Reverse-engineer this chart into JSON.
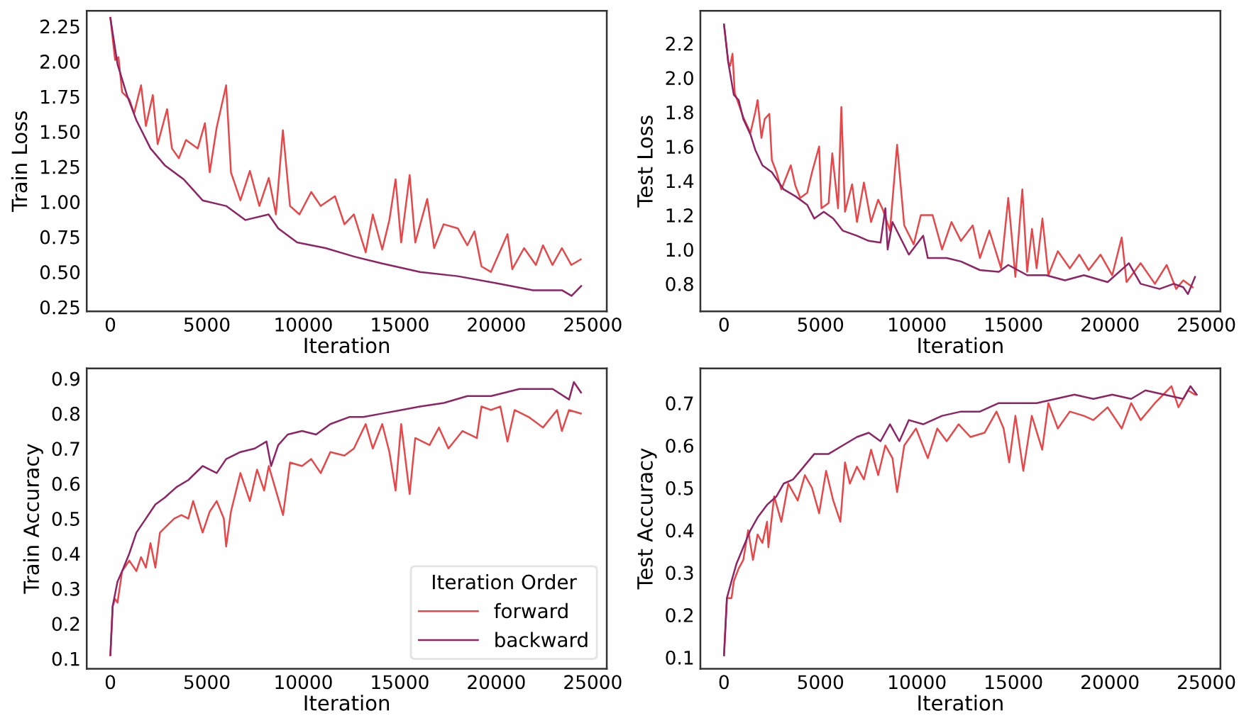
{
  "chart_data": [
    {
      "type": "line",
      "xlabel": "Iteration",
      "ylabel": "Train Loss",
      "grid": false,
      "legend": false,
      "xlim": [
        -1225,
        25725
      ],
      "xticks": [
        0,
        5000,
        10000,
        15000,
        20000,
        25000
      ],
      "ylim": [
        0.22,
        2.36
      ],
      "yticks": [
        {
          "value": 0.25,
          "label": "0.25"
        },
        {
          "value": 0.5,
          "label": "0.50"
        },
        {
          "value": 0.75,
          "label": "0.75"
        },
        {
          "value": 1.0,
          "label": "1.00"
        },
        {
          "value": 1.25,
          "label": "1.25"
        },
        {
          "value": 1.5,
          "label": "1.50"
        },
        {
          "value": 1.75,
          "label": "1.75"
        },
        {
          "value": 2.0,
          "label": "2.00"
        },
        {
          "value": 2.25,
          "label": "2.25"
        }
      ],
      "series": [
        {
          "color": "#e8474a",
          "x": [
            0,
            245,
            420,
            610,
            980,
            1230,
            1590,
            1840,
            2200,
            2450,
            2940,
            3190,
            3550,
            3920,
            4530,
            4900,
            5150,
            5510,
            6000,
            6250,
            6740,
            7230,
            7720,
            8210,
            8580,
            8940,
            9310,
            9800,
            10410,
            10900,
            11640,
            12130,
            12620,
            13230,
            13600,
            14090,
            14460,
            14780,
            15070,
            15510,
            15800,
            16420,
            16780,
            17270,
            18010,
            18500,
            18870,
            19230,
            19720,
            20580,
            20830,
            21440,
            22050,
            22420,
            22910,
            23400,
            23890,
            24380
          ],
          "values": [
            2.31,
            2.01,
            2.03,
            1.78,
            1.73,
            1.63,
            1.83,
            1.54,
            1.76,
            1.41,
            1.66,
            1.38,
            1.31,
            1.44,
            1.38,
            1.56,
            1.21,
            1.53,
            1.83,
            1.21,
            1.01,
            1.22,
            0.97,
            1.17,
            0.91,
            1.51,
            0.97,
            0.91,
            1.07,
            0.97,
            1.04,
            0.84,
            0.91,
            0.64,
            0.91,
            0.66,
            0.87,
            1.16,
            0.71,
            1.19,
            0.71,
            1.02,
            0.67,
            0.84,
            0.81,
            0.69,
            0.79,
            0.54,
            0.5,
            0.77,
            0.52,
            0.67,
            0.55,
            0.69,
            0.55,
            0.67,
            0.55,
            0.59
          ]
        },
        {
          "color": "#8e2464",
          "x": [
            0,
            370,
            860,
            1350,
            2080,
            2820,
            3800,
            4780,
            6000,
            7000,
            8200,
            8700,
            9680,
            11150,
            12620,
            14090,
            16050,
            18000,
            20000,
            21900,
            23400,
            23900,
            24400
          ],
          "values": [
            2.31,
            1.98,
            1.76,
            1.58,
            1.38,
            1.26,
            1.16,
            1.01,
            0.97,
            0.87,
            0.91,
            0.81,
            0.71,
            0.67,
            0.61,
            0.56,
            0.5,
            0.47,
            0.42,
            0.37,
            0.37,
            0.33,
            0.4
          ]
        }
      ]
    },
    {
      "type": "line",
      "xlabel": "Iteration",
      "ylabel": "Test Loss",
      "grid": false,
      "legend": false,
      "xlim": [
        -1225,
        25725
      ],
      "xticks": [
        0,
        5000,
        10000,
        15000,
        20000,
        25000
      ],
      "ylim": [
        0.64,
        2.39
      ],
      "yticks": [
        0.8,
        {
          "value": 1.0,
          "label": "1.0"
        },
        1.2,
        1.4,
        1.6,
        1.8,
        {
          "value": 2.0,
          "label": "2.0"
        },
        2.2
      ],
      "series": [
        {
          "color": "#e8474a",
          "x": [
            0,
            220,
            320,
            440,
            560,
            1000,
            1370,
            1620,
            1740,
            1940,
            2110,
            2350,
            2480,
            2720,
            2970,
            3460,
            3700,
            3950,
            4310,
            4560,
            4930,
            5050,
            5420,
            5610,
            5910,
            6080,
            6270,
            6640,
            6890,
            7250,
            7620,
            7990,
            8240,
            8600,
            8970,
            9340,
            9830,
            10200,
            10810,
            11300,
            11790,
            12280,
            12890,
            13260,
            13750,
            14360,
            14730,
            15100,
            15460,
            15710,
            15960,
            16200,
            16500,
            16810,
            17300,
            17920,
            18410,
            18900,
            19510,
            20120,
            20610,
            20860,
            21590,
            22330,
            22940,
            23430,
            23800,
            24290
          ],
          "values": [
            2.31,
            2.09,
            2.07,
            2.14,
            1.91,
            1.77,
            1.68,
            1.8,
            1.87,
            1.65,
            1.76,
            1.79,
            1.52,
            1.45,
            1.35,
            1.49,
            1.37,
            1.3,
            1.33,
            1.45,
            1.6,
            1.24,
            1.27,
            1.56,
            1.24,
            1.83,
            1.22,
            1.38,
            1.16,
            1.39,
            1.16,
            1.29,
            1.23,
            1.11,
            1.61,
            1.14,
            1.03,
            1.2,
            1.2,
            1.0,
            1.16,
            1.05,
            1.14,
            0.95,
            1.11,
            0.89,
            1.3,
            0.84,
            1.35,
            0.87,
            1.12,
            0.89,
            1.18,
            0.85,
            0.99,
            0.89,
            0.97,
            0.88,
            0.97,
            0.85,
            1.07,
            0.81,
            0.92,
            0.8,
            0.91,
            0.77,
            0.82,
            0.78
          ]
        },
        {
          "color": "#8e2464",
          "x": [
            0,
            220,
            510,
            760,
            1000,
            1370,
            1620,
            1990,
            2480,
            3090,
            3700,
            4310,
            4680,
            5170,
            5660,
            6150,
            6890,
            7500,
            8110,
            8360,
            8480,
            8730,
            9580,
            10320,
            10560,
            11540,
            12280,
            13260,
            14240,
            14730,
            15710,
            16690,
            17670,
            18650,
            19880,
            20980,
            21590,
            22570,
            23310,
            23800,
            24040,
            24410
          ],
          "values": [
            2.31,
            2.09,
            1.9,
            1.87,
            1.76,
            1.67,
            1.58,
            1.49,
            1.45,
            1.35,
            1.31,
            1.26,
            1.18,
            1.22,
            1.18,
            1.11,
            1.08,
            1.05,
            1.04,
            1.24,
            1.0,
            1.16,
            0.97,
            1.08,
            0.95,
            0.95,
            0.93,
            0.88,
            0.87,
            0.91,
            0.85,
            0.85,
            0.82,
            0.85,
            0.81,
            0.92,
            0.8,
            0.77,
            0.8,
            0.78,
            0.74,
            0.84
          ]
        }
      ]
    },
    {
      "type": "line",
      "xlabel": "Iteration",
      "ylabel": "Train Accuracy",
      "grid": false,
      "legend": "bottom right",
      "legend_title": "Iteration Order",
      "xlim": [
        -1225,
        25725
      ],
      "xticks": [
        0,
        5000,
        10000,
        15000,
        20000,
        25000
      ],
      "ylim": [
        0.071,
        0.929
      ],
      "yticks": [
        0.1,
        0.2,
        0.3,
        0.4,
        0.5,
        0.6,
        0.7,
        0.8,
        0.9
      ],
      "series": [
        {
          "name": "forward",
          "color": "#e8474a",
          "x": [
            0,
            120,
            250,
            370,
            610,
            980,
            1350,
            1590,
            1840,
            2080,
            2330,
            2570,
            2940,
            3310,
            3680,
            4040,
            4290,
            4780,
            5150,
            5510,
            5880,
            6000,
            6250,
            6740,
            7230,
            7600,
            7970,
            8210,
            8580,
            8950,
            9310,
            9930,
            10410,
            10900,
            11400,
            12130,
            12620,
            13230,
            13600,
            14090,
            14460,
            14780,
            15070,
            15510,
            15800,
            16540,
            17030,
            17520,
            18250,
            18990,
            19230,
            19720,
            20210,
            20580,
            20950,
            21680,
            22420,
            23150,
            23400,
            23770,
            24380
          ],
          "values": [
            0.11,
            0.25,
            0.27,
            0.26,
            0.35,
            0.38,
            0.35,
            0.39,
            0.36,
            0.43,
            0.36,
            0.46,
            0.48,
            0.5,
            0.51,
            0.5,
            0.55,
            0.46,
            0.52,
            0.55,
            0.5,
            0.42,
            0.52,
            0.63,
            0.55,
            0.64,
            0.58,
            0.65,
            0.58,
            0.51,
            0.66,
            0.65,
            0.67,
            0.63,
            0.69,
            0.68,
            0.7,
            0.77,
            0.7,
            0.77,
            0.69,
            0.58,
            0.77,
            0.57,
            0.73,
            0.71,
            0.76,
            0.7,
            0.75,
            0.73,
            0.82,
            0.81,
            0.82,
            0.72,
            0.81,
            0.79,
            0.76,
            0.81,
            0.75,
            0.81,
            0.8
          ]
        },
        {
          "name": "backward",
          "color": "#8e2464",
          "x": [
            0,
            120,
            370,
            610,
            980,
            1350,
            1840,
            2330,
            2820,
            3430,
            4040,
            4780,
            5510,
            6000,
            6740,
            7480,
            8090,
            8330,
            8700,
            9190,
            9930,
            10660,
            11400,
            12380,
            13110,
            14090,
            15070,
            16050,
            17280,
            18500,
            19730,
            20470,
            21200,
            21940,
            22920,
            23770,
            24020,
            24390
          ],
          "values": [
            0.11,
            0.25,
            0.32,
            0.35,
            0.4,
            0.46,
            0.5,
            0.54,
            0.56,
            0.59,
            0.61,
            0.65,
            0.63,
            0.67,
            0.69,
            0.7,
            0.72,
            0.65,
            0.71,
            0.74,
            0.75,
            0.74,
            0.77,
            0.79,
            0.79,
            0.8,
            0.81,
            0.82,
            0.83,
            0.85,
            0.85,
            0.86,
            0.87,
            0.87,
            0.87,
            0.84,
            0.89,
            0.86
          ]
        }
      ]
    },
    {
      "type": "line",
      "xlabel": "Iteration",
      "ylabel": "Test Accuracy",
      "grid": false,
      "legend": false,
      "xlim": [
        -1225,
        25725
      ],
      "xticks": [
        0,
        5000,
        10000,
        15000,
        20000,
        25000
      ],
      "ylim": [
        0.073,
        0.782
      ],
      "yticks": [
        0.1,
        0.2,
        0.3,
        0.4,
        0.5,
        0.6,
        0.7
      ],
      "series": [
        {
          "color": "#e8474a",
          "x": [
            0,
            150,
            390,
            510,
            760,
            1000,
            1250,
            1500,
            1740,
            1990,
            2230,
            2300,
            2600,
            2970,
            3330,
            3820,
            4190,
            4560,
            4930,
            5290,
            5660,
            6030,
            6270,
            6520,
            6890,
            7250,
            7620,
            7990,
            8360,
            8730,
            8970,
            9340,
            9950,
            10560,
            11050,
            11540,
            12160,
            12770,
            13500,
            14120,
            14490,
            14780,
            15100,
            15510,
            15950,
            16490,
            16810,
            17300,
            17920,
            18650,
            19140,
            19880,
            20610,
            21100,
            21590,
            22330,
            23190,
            23550,
            24040,
            24410
          ],
          "values": [
            0.105,
            0.24,
            0.24,
            0.28,
            0.31,
            0.33,
            0.4,
            0.33,
            0.39,
            0.37,
            0.42,
            0.36,
            0.48,
            0.42,
            0.51,
            0.47,
            0.53,
            0.5,
            0.44,
            0.54,
            0.47,
            0.42,
            0.56,
            0.51,
            0.55,
            0.52,
            0.59,
            0.53,
            0.6,
            0.57,
            0.49,
            0.6,
            0.64,
            0.57,
            0.64,
            0.61,
            0.65,
            0.62,
            0.63,
            0.68,
            0.64,
            0.56,
            0.67,
            0.54,
            0.67,
            0.59,
            0.7,
            0.64,
            0.68,
            0.67,
            0.66,
            0.69,
            0.64,
            0.7,
            0.66,
            0.7,
            0.74,
            0.69,
            0.73,
            0.72
          ]
        },
        {
          "color": "#8e2464",
          "x": [
            0,
            150,
            390,
            640,
            1000,
            1370,
            1740,
            2230,
            2720,
            3090,
            3580,
            3950,
            4680,
            5420,
            6150,
            6890,
            7500,
            8110,
            8600,
            9090,
            9580,
            10320,
            11300,
            12280,
            13260,
            14240,
            15220,
            16200,
            17180,
            18160,
            19140,
            20120,
            21100,
            21840,
            22820,
            23800,
            24170,
            24500
          ],
          "values": [
            0.105,
            0.24,
            0.28,
            0.32,
            0.36,
            0.4,
            0.43,
            0.46,
            0.48,
            0.51,
            0.52,
            0.54,
            0.58,
            0.58,
            0.6,
            0.62,
            0.63,
            0.61,
            0.65,
            0.61,
            0.66,
            0.65,
            0.67,
            0.68,
            0.68,
            0.7,
            0.7,
            0.7,
            0.71,
            0.72,
            0.71,
            0.72,
            0.71,
            0.73,
            0.72,
            0.71,
            0.74,
            0.72
          ]
        }
      ]
    }
  ]
}
